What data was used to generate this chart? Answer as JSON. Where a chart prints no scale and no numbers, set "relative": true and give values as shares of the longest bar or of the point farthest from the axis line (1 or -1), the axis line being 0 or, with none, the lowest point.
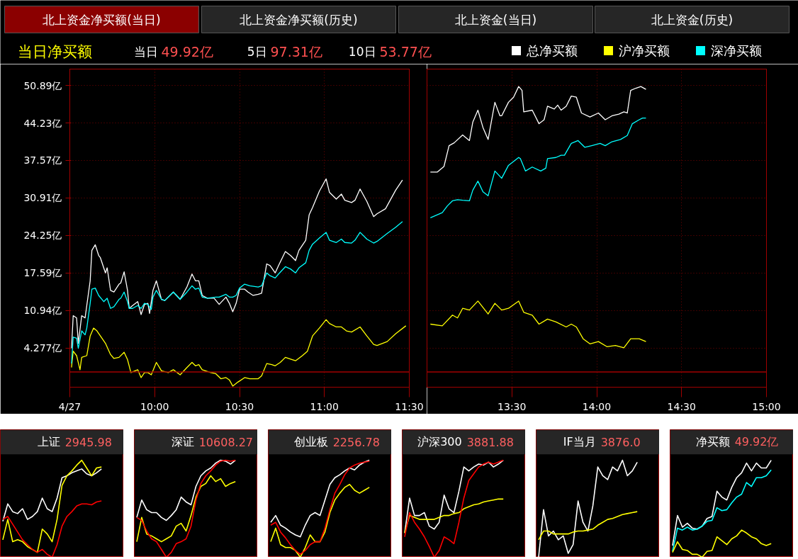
{
  "chart_data": [
    {
      "type": "line",
      "title": "当日净买额",
      "annotations": [
        "北上资金净买额(当日)",
        "北上资金净买额(历史)",
        "北上资金(当日)",
        "北上资金(历史)",
        "当日 49.92亿",
        "5日 97.31亿",
        "10日 53.77亿"
      ],
      "xlim": [
        9.5,
        11.5
      ],
      "xticks": [
        {
          "value": 9.5,
          "label": "4/27"
        },
        {
          "value": 10,
          "label": "10:00"
        },
        {
          "value": 10.5,
          "label": "10:30"
        },
        {
          "value": 11,
          "label": "11:00"
        },
        {
          "value": 11.5,
          "label": "11:30"
        }
      ],
      "ylim": [
        -2.7,
        53.8
      ],
      "yticks": [
        {
          "value": 4.277,
          "label": "4.277亿"
        },
        {
          "value": 10.94,
          "label": "10.94亿"
        },
        {
          "value": 17.59,
          "label": "17.59亿"
        },
        {
          "value": 24.25,
          "label": "24.25亿"
        },
        {
          "value": 30.91,
          "label": "30.91亿"
        },
        {
          "value": 37.57,
          "label": "37.57亿"
        },
        {
          "value": 44.23,
          "label": "44.23亿"
        },
        {
          "value": 50.89,
          "label": "50.89亿"
        }
      ],
      "grid": true,
      "legend": "top right",
      "ref_lines": [
        {
          "axis": "y",
          "value": 0,
          "color": "#a00000"
        }
      ],
      "series": [
        {
          "name": "总净买额",
          "color": "#ffffff",
          "x": [
            9.51,
            9.52,
            9.54,
            9.55,
            9.57,
            9.59,
            9.6,
            9.62,
            9.63,
            9.65,
            9.67,
            9.68,
            9.71,
            9.72,
            9.74,
            9.76,
            9.79,
            9.8,
            9.82,
            9.84,
            9.85,
            9.87,
            9.9,
            9.92,
            9.94,
            9.96,
            9.97,
            9.99,
            10.01,
            10.04,
            10.06,
            10.11,
            10.15,
            10.19,
            10.22,
            10.24,
            10.26,
            10.28,
            10.31,
            10.35,
            10.38,
            10.42,
            10.44,
            10.46,
            10.48,
            10.5,
            10.53,
            10.55,
            10.58,
            10.61,
            10.63,
            10.66,
            10.68,
            10.71,
            10.73,
            10.77,
            10.8,
            10.83,
            10.85,
            10.89,
            10.91,
            10.93,
            10.97,
            11.01,
            11.03,
            11.07,
            11.1,
            11.12,
            11.16,
            11.18,
            11.21,
            11.25,
            11.29,
            11.31,
            11.36,
            11.42,
            11.46
          ],
          "values": [
            4.2,
            10.0,
            9.6,
            5.1,
            10.0,
            9.6,
            11.8,
            16.2,
            21.6,
            22.6,
            20.7,
            20.3,
            17.6,
            18.5,
            14.5,
            14.2,
            15.6,
            15.8,
            17.8,
            14.5,
            11.3,
            11.8,
            12.5,
            10.2,
            12.0,
            12.2,
            10.4,
            14.5,
            16.2,
            12.9,
            12.7,
            14.2,
            12.9,
            15.1,
            17.4,
            16.2,
            16.2,
            13.6,
            13.1,
            13.1,
            12.0,
            13.3,
            12.2,
            10.7,
            12.2,
            14.7,
            14.7,
            14.2,
            13.6,
            13.8,
            14.0,
            19.2,
            18.9,
            17.6,
            18.9,
            21.4,
            20.7,
            19.8,
            21.6,
            23.4,
            27.9,
            29.2,
            32.1,
            34.3,
            31.9,
            30.7,
            31.6,
            30.5,
            30.1,
            30.5,
            32.5,
            30.3,
            27.6,
            28.1,
            29.0,
            32.3,
            34.1
          ]
        },
        {
          "name": "沪净买额",
          "color": "#ffff00",
          "x": [
            9.51,
            9.52,
            9.54,
            9.56,
            9.57,
            9.6,
            9.62,
            9.64,
            9.66,
            9.68,
            9.71,
            9.74,
            9.76,
            9.79,
            9.82,
            9.84,
            9.86,
            9.9,
            9.92,
            9.94,
            9.96,
            9.98,
            10.01,
            10.04,
            10.08,
            10.11,
            10.15,
            10.19,
            10.22,
            10.24,
            10.26,
            10.28,
            10.33,
            10.36,
            10.39,
            10.42,
            10.44,
            10.46,
            10.49,
            10.53,
            10.56,
            10.61,
            10.63,
            10.66,
            10.69,
            10.71,
            10.74,
            10.77,
            10.81,
            10.83,
            10.87,
            10.9,
            10.93,
            10.97,
            11.01,
            11.03,
            11.07,
            11.1,
            11.13,
            11.16,
            11.21,
            11.25,
            11.29,
            11.31,
            11.37,
            11.42,
            11.48
          ],
          "values": [
            0.8,
            3.7,
            2.9,
            0.4,
            2.6,
            2.9,
            6.4,
            7.8,
            7.3,
            6.4,
            5.1,
            3.1,
            2.4,
            2.6,
            3.5,
            2.2,
            -0.1,
            0.4,
            -1.0,
            -0.1,
            -0.1,
            -0.5,
            1.7,
            0.2,
            -0.1,
            0.4,
            -0.5,
            0.8,
            1.7,
            1.1,
            1.3,
            0.4,
            -0.1,
            -0.3,
            -1.2,
            -1.0,
            -1.4,
            -2.5,
            -1.8,
            -1.0,
            -1.2,
            -1.2,
            -0.7,
            1.5,
            1.3,
            1.1,
            1.7,
            2.6,
            2.2,
            2.0,
            2.9,
            3.7,
            6.4,
            7.8,
            9.3,
            8.6,
            8.0,
            8.0,
            7.3,
            7.1,
            8.0,
            6.4,
            4.9,
            4.7,
            5.4,
            6.8,
            8.2
          ]
        },
        {
          "name": "深净买额",
          "color": "#00ffff",
          "x": [
            9.51,
            9.52,
            9.54,
            9.55,
            9.57,
            9.59,
            9.6,
            9.62,
            9.63,
            9.65,
            9.67,
            9.7,
            9.72,
            9.74,
            9.76,
            9.79,
            9.8,
            9.82,
            9.84,
            9.85,
            9.87,
            9.9,
            9.92,
            9.94,
            9.96,
            9.98,
            9.99,
            10.01,
            10.04,
            10.06,
            10.11,
            10.15,
            10.19,
            10.22,
            10.24,
            10.26,
            10.28,
            10.31,
            10.36,
            10.38,
            10.42,
            10.44,
            10.46,
            10.48,
            10.5,
            10.53,
            10.56,
            10.61,
            10.63,
            10.66,
            10.68,
            10.71,
            10.73,
            10.77,
            10.8,
            10.83,
            10.85,
            10.89,
            10.91,
            10.93,
            10.97,
            11.01,
            11.03,
            11.07,
            11.1,
            11.12,
            11.16,
            11.18,
            11.21,
            11.25,
            11.29,
            11.31,
            11.37,
            11.42,
            11.46
          ],
          "values": [
            1.5,
            6.2,
            6.0,
            4.2,
            7.3,
            6.6,
            7.8,
            12.2,
            14.7,
            14.9,
            13.6,
            12.5,
            13.1,
            11.3,
            11.6,
            12.9,
            13.1,
            14.2,
            12.5,
            11.3,
            11.3,
            11.8,
            11.3,
            12.2,
            12.0,
            11.1,
            13.3,
            14.5,
            12.9,
            12.7,
            14.2,
            12.9,
            14.2,
            15.3,
            14.7,
            14.9,
            13.3,
            13.1,
            13.3,
            13.3,
            13.8,
            13.3,
            13.3,
            13.6,
            14.9,
            15.6,
            15.3,
            15.1,
            15.3,
            17.6,
            17.1,
            16.7,
            17.4,
            18.7,
            18.3,
            17.6,
            18.5,
            19.4,
            21.6,
            22.7,
            23.8,
            24.8,
            23.4,
            23.0,
            23.6,
            23.0,
            22.9,
            23.4,
            24.8,
            23.6,
            22.9,
            23.2,
            24.6,
            25.7,
            26.7
          ]
        }
      ]
    },
    {
      "type": "line",
      "tick_labels": "x",
      "xlim": [
        13,
        15
      ],
      "xticks": [
        {
          "value": 13.5,
          "label": "13:30"
        },
        {
          "value": 14,
          "label": "14:00"
        },
        {
          "value": 14.5,
          "label": "14:30"
        },
        {
          "value": 15,
          "label": "15:00"
        }
      ],
      "ylim": [
        -2.7,
        53.8
      ],
      "yticks": [
        4.277,
        10.94,
        17.59,
        24.25,
        30.91,
        37.57,
        44.23,
        50.89
      ],
      "grid": true,
      "ref_lines": [
        {
          "axis": "y",
          "value": 0,
          "color": "#a00000"
        }
      ],
      "series": [
        {
          "color": "#ffffff",
          "x": [
            13.02,
            13.06,
            13.1,
            13.13,
            13.16,
            13.21,
            13.25,
            13.27,
            13.3,
            13.33,
            13.36,
            13.4,
            13.43,
            13.44,
            13.48,
            13.51,
            13.54,
            13.56,
            13.57,
            13.62,
            13.66,
            13.69,
            13.71,
            13.75,
            13.77,
            13.79,
            13.82,
            13.85,
            13.88,
            13.91,
            13.96,
            14.01,
            14.05,
            14.09,
            14.13,
            14.16,
            14.18,
            14.2,
            14.23,
            14.26,
            14.29
          ],
          "values": [
            35.5,
            35.5,
            36.5,
            40.2,
            40.7,
            42.1,
            41.1,
            44.4,
            46.5,
            43.4,
            41.3,
            47.9,
            45.5,
            45.5,
            47.9,
            48.8,
            50.7,
            50.0,
            46.2,
            46.5,
            44.1,
            44.8,
            47.2,
            46.7,
            47.4,
            46.5,
            47.2,
            49.0,
            48.8,
            46.0,
            45.3,
            46.0,
            44.8,
            45.5,
            45.8,
            46.2,
            46.0,
            50.0,
            50.4,
            50.7,
            50.2
          ]
        },
        {
          "color": "#ffff00",
          "x": [
            13.02,
            13.09,
            13.15,
            13.18,
            13.21,
            13.25,
            13.3,
            13.36,
            13.4,
            13.44,
            13.48,
            13.54,
            13.57,
            13.62,
            13.66,
            13.71,
            13.76,
            13.82,
            13.85,
            13.88,
            13.92,
            13.96,
            14.01,
            14.06,
            14.11,
            14.16,
            14.2,
            14.25,
            14.29
          ],
          "values": [
            8.5,
            8.2,
            10.1,
            9.6,
            11.3,
            11.0,
            12.6,
            10.3,
            12.2,
            11.0,
            11.3,
            12.6,
            10.6,
            10.1,
            8.5,
            9.4,
            8.9,
            8.0,
            8.5,
            8.0,
            5.9,
            5.0,
            5.4,
            4.5,
            4.7,
            4.3,
            5.9,
            5.9,
            5.4
          ]
        },
        {
          "color": "#00ffff",
          "x": [
            13.02,
            13.09,
            13.12,
            13.15,
            13.18,
            13.21,
            13.25,
            13.27,
            13.3,
            13.33,
            13.36,
            13.4,
            13.44,
            13.48,
            13.54,
            13.55,
            13.58,
            13.62,
            13.67,
            13.7,
            13.71,
            13.76,
            13.79,
            13.81,
            13.85,
            13.89,
            13.93,
            13.97,
            14.02,
            14.05,
            14.09,
            14.14,
            14.18,
            14.21,
            14.25,
            14.27,
            14.29
          ],
          "values": [
            27.4,
            28.3,
            29.5,
            30.4,
            30.6,
            30.5,
            30.4,
            32.3,
            33.9,
            32.0,
            31.3,
            35.7,
            34.4,
            36.7,
            38.1,
            37.9,
            35.7,
            36.4,
            35.7,
            36.2,
            37.9,
            38.1,
            38.5,
            38.5,
            40.6,
            41.1,
            39.9,
            40.2,
            40.6,
            40.2,
            40.9,
            41.3,
            42.0,
            44.1,
            44.8,
            45.1,
            45.1
          ]
        }
      ]
    },
    {
      "type": "line",
      "relative": true,
      "title": "上证 2945.98",
      "categories": [
        null,
        null,
        null,
        null,
        null,
        null,
        null,
        null,
        null,
        null,
        null,
        null,
        null,
        null,
        null,
        null,
        null,
        null,
        null,
        null,
        null,
        null,
        null,
        null,
        null
      ],
      "series": [
        {
          "color": "#ffffff",
          "values": [
            0.37,
            0.55,
            0.47,
            0.45,
            0.5,
            0.39,
            0.42,
            0.47,
            0.61,
            0.5,
            0.47,
            0.61,
            0.82,
            0.84,
            0.87,
            0.89,
            0.91,
            0.86,
            0.84,
            0.87,
            0.91,
            null,
            null,
            null,
            null
          ]
        },
        {
          "color": "#ffff00",
          "values": [
            0.18,
            0.39,
            0.16,
            0.18,
            0.16,
            0.11,
            0.08,
            0.05,
            0.29,
            0.24,
            0.16,
            0.39,
            0.74,
            0.84,
            0.89,
            0.95,
            1.0,
            0.92,
            0.84,
            0.92,
            0.93,
            null,
            null,
            null,
            null
          ]
        },
        {
          "color": "#ff0000",
          "values": [
            0.39,
            0.42,
            0.34,
            0.26,
            0.18,
            0.13,
            0.08,
            0.05,
            0.08,
            0.03,
            0.0,
            0.13,
            0.32,
            0.42,
            0.47,
            0.53,
            0.55,
            0.55,
            0.54,
            0.57,
            0.58,
            null,
            null,
            null,
            null
          ]
        }
      ]
    },
    {
      "type": "line",
      "relative": true,
      "title": "深证 10608.27",
      "categories": [
        null,
        null,
        null,
        null,
        null,
        null,
        null,
        null,
        null,
        null,
        null,
        null,
        null,
        null,
        null,
        null,
        null,
        null,
        null,
        null,
        null,
        null,
        null,
        null,
        null
      ],
      "series": [
        {
          "color": "#ffffff",
          "values": [
            0.41,
            0.59,
            0.49,
            0.46,
            0.46,
            0.41,
            0.38,
            0.43,
            0.49,
            0.62,
            0.57,
            0.54,
            0.73,
            0.84,
            0.89,
            0.92,
            0.97,
            1.0,
            0.99,
            0.96,
            1.0,
            null,
            null,
            null,
            null
          ]
        },
        {
          "color": "#ffff00",
          "values": [
            0.16,
            0.41,
            0.24,
            0.22,
            0.19,
            0.16,
            0.19,
            0.22,
            0.32,
            0.35,
            0.27,
            0.43,
            0.62,
            0.73,
            0.76,
            0.84,
            0.78,
            0.81,
            0.73,
            0.76,
            0.78,
            null,
            null,
            null,
            null
          ]
        },
        {
          "color": "#ff0000",
          "values": [
            0.41,
            0.38,
            0.27,
            0.19,
            0.16,
            0.08,
            0.0,
            0.05,
            0.14,
            0.16,
            0.19,
            0.32,
            0.59,
            0.76,
            0.84,
            0.89,
            0.95,
            0.99,
            1.0,
            0.99,
            1.0,
            null,
            null,
            null,
            null
          ]
        }
      ]
    },
    {
      "type": "line",
      "relative": true,
      "title": "创业板 2256.78",
      "categories": [
        null,
        null,
        null,
        null,
        null,
        null,
        null,
        null,
        null,
        null,
        null,
        null,
        null,
        null,
        null,
        null,
        null,
        null,
        null,
        null,
        null,
        null,
        null,
        null,
        null
      ],
      "series": [
        {
          "color": "#ffffff",
          "values": [
            0.36,
            0.43,
            0.33,
            0.3,
            0.26,
            0.23,
            0.21,
            0.33,
            0.43,
            0.46,
            0.43,
            0.59,
            0.75,
            0.82,
            0.85,
            0.89,
            0.92,
            0.9,
            0.95,
            0.98,
            1.0,
            null,
            null,
            null,
            null
          ]
        },
        {
          "color": "#ffff00",
          "values": [
            0.16,
            0.3,
            0.13,
            0.1,
            0.1,
            0.07,
            0.0,
            0.1,
            0.23,
            0.16,
            0.16,
            0.26,
            0.46,
            0.59,
            0.66,
            0.72,
            0.75,
            0.69,
            0.66,
            0.69,
            0.72,
            null,
            null,
            null,
            null
          ]
        },
        {
          "color": "#ff0000",
          "values": [
            0.33,
            0.36,
            0.26,
            0.2,
            0.13,
            0.07,
            0.03,
            0.07,
            0.13,
            0.16,
            0.16,
            0.3,
            0.49,
            0.66,
            0.75,
            0.85,
            0.92,
            0.95,
            0.97,
            0.98,
            0.99,
            null,
            null,
            null,
            null
          ]
        }
      ]
    },
    {
      "type": "line",
      "relative": true,
      "title": "沪深300 3881.88",
      "categories": [
        null,
        null,
        null,
        null,
        null,
        null,
        null,
        null,
        null,
        null,
        null,
        null,
        null,
        null,
        null,
        null,
        null,
        null,
        null,
        null,
        null,
        null,
        null,
        null,
        null
      ],
      "series": [
        {
          "color": "#ffffff",
          "values": [
            0.25,
            0.61,
            0.43,
            0.43,
            0.46,
            0.32,
            0.29,
            0.36,
            0.64,
            0.5,
            0.46,
            0.68,
            0.93,
            0.89,
            0.93,
            0.96,
            0.95,
            0.98,
            0.93,
            0.96,
            1.0,
            null,
            null,
            null,
            null
          ]
        },
        {
          "color": "#ffff00",
          "values": [
            0.25,
            0.43,
            0.41,
            0.39,
            0.39,
            0.39,
            0.39,
            0.41,
            0.43,
            0.43,
            0.45,
            0.46,
            0.5,
            0.52,
            0.54,
            0.55,
            0.57,
            0.58,
            0.59,
            0.6,
            0.6,
            null,
            null,
            null,
            null
          ]
        },
        {
          "color": "#ff0000",
          "values": [
            0.21,
            0.46,
            0.36,
            0.29,
            0.21,
            0.11,
            0.0,
            0.07,
            0.21,
            0.18,
            0.14,
            0.36,
            0.61,
            0.79,
            0.86,
            0.93,
            0.96,
            0.98,
            0.96,
            0.98,
            1.0,
            null,
            null,
            null,
            null
          ]
        }
      ]
    },
    {
      "type": "line",
      "relative": true,
      "title": "IF当月 3876.0",
      "categories": [
        null,
        null,
        null,
        null,
        null,
        null,
        null,
        null,
        null,
        null,
        null,
        null,
        null,
        null,
        null,
        null,
        null,
        null,
        null,
        null,
        null,
        null,
        null,
        null,
        null
      ],
      "series": [
        {
          "color": "#ffffff",
          "values": [
            0.0,
            0.49,
            0.22,
            0.27,
            0.18,
            0.22,
            0.04,
            0.13,
            0.58,
            0.36,
            0.27,
            0.53,
            0.93,
            0.84,
            0.8,
            0.93,
            0.89,
            1.0,
            0.84,
            0.89,
            0.98,
            null,
            null,
            null,
            null
          ]
        },
        {
          "color": "#ffff00",
          "values": [
            0.18,
            0.27,
            0.27,
            0.24,
            0.24,
            0.24,
            0.24,
            0.26,
            0.27,
            0.27,
            0.28,
            0.29,
            0.33,
            0.36,
            0.39,
            0.4,
            0.42,
            0.44,
            0.45,
            0.46,
            0.47,
            null,
            null,
            null,
            null
          ]
        }
      ]
    },
    {
      "type": "line",
      "relative": true,
      "title": "净买额 49.92亿",
      "categories": [
        null,
        null,
        null,
        null,
        null,
        null,
        null,
        null,
        null,
        null,
        null,
        null,
        null,
        null,
        null,
        null,
        null,
        null,
        null,
        null,
        null,
        null,
        null,
        null,
        null
      ],
      "series": [
        {
          "color": "#ffffff",
          "values": [
            0.12,
            0.43,
            0.31,
            0.35,
            0.3,
            0.29,
            0.32,
            0.4,
            0.42,
            0.68,
            0.62,
            0.59,
            0.72,
            0.82,
            0.87,
            0.97,
            0.89,
            0.97,
            0.92,
            0.92,
            1.0,
            null,
            null,
            null,
            null
          ]
        },
        {
          "color": "#00ffff",
          "values": [
            0.06,
            0.3,
            0.28,
            0.31,
            0.28,
            0.29,
            0.32,
            0.37,
            0.38,
            0.51,
            0.48,
            0.49,
            0.56,
            0.62,
            0.65,
            0.77,
            0.73,
            0.82,
            0.82,
            0.84,
            0.9,
            null,
            null,
            null,
            null
          ]
        },
        {
          "color": "#ffff00",
          "values": [
            0.05,
            0.16,
            0.08,
            0.07,
            0.03,
            0.03,
            0.0,
            0.06,
            0.07,
            0.21,
            0.17,
            0.13,
            0.19,
            0.22,
            0.28,
            0.25,
            0.21,
            0.19,
            0.14,
            0.12,
            0.14,
            null,
            null,
            null,
            null
          ]
        }
      ]
    }
  ]
}
